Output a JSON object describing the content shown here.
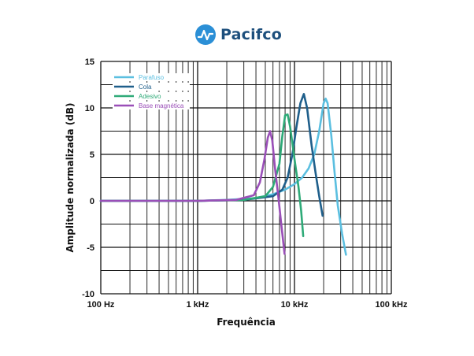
{
  "brand": {
    "name": "Pacifco",
    "icon": "waveform-logo-icon",
    "color": "#1d4f7c",
    "icon_color": "#2b8fd6"
  },
  "chart_data": {
    "type": "line",
    "xlabel": "Frequência",
    "ylabel": "Amplitude normalizada (dB)",
    "xscale": "log",
    "xlim": [
      100,
      100000
    ],
    "ylim": [
      -10,
      15
    ],
    "x_ticks": [
      {
        "value": 100,
        "label": "100 Hz"
      },
      {
        "value": 1000,
        "label": "1 kHz"
      },
      {
        "value": 10000,
        "label": "10 kHz"
      },
      {
        "value": 100000,
        "label": "100 kHz"
      }
    ],
    "y_ticks": [
      15,
      10,
      5,
      0,
      -5,
      -10
    ],
    "grid": true,
    "legend_position": "top-left",
    "series": [
      {
        "name": "Parafuso",
        "color": "#5bbfe0",
        "points": [
          [
            100,
            0
          ],
          [
            300,
            0
          ],
          [
            1000,
            0
          ],
          [
            2000,
            0.1
          ],
          [
            4000,
            0.3
          ],
          [
            6000,
            0.7
          ],
          [
            8000,
            1.2
          ],
          [
            10000,
            1.8
          ],
          [
            12000,
            2.5
          ],
          [
            14000,
            3.5
          ],
          [
            16000,
            5
          ],
          [
            18000,
            7.5
          ],
          [
            20000,
            10.5
          ],
          [
            21000,
            11
          ],
          [
            22000,
            10.5
          ],
          [
            24000,
            7
          ],
          [
            26000,
            3
          ],
          [
            28000,
            -0.5
          ],
          [
            31000,
            -3.5
          ],
          [
            34000,
            -5.8
          ]
        ]
      },
      {
        "name": "Cola",
        "color": "#1f5f8b",
        "points": [
          [
            100,
            0
          ],
          [
            1000,
            0
          ],
          [
            3000,
            0.1
          ],
          [
            6000,
            0.5
          ],
          [
            7500,
            1.2
          ],
          [
            8500,
            2.5
          ],
          [
            9500,
            5
          ],
          [
            10500,
            8
          ],
          [
            11500,
            10.5
          ],
          [
            12500,
            11.5
          ],
          [
            13500,
            10
          ],
          [
            15000,
            6
          ],
          [
            16500,
            3
          ],
          [
            18000,
            0.5
          ],
          [
            19500,
            -1.6
          ]
        ]
      },
      {
        "name": "Adesivo",
        "color": "#2eaa78",
        "points": [
          [
            100,
            0
          ],
          [
            1000,
            0
          ],
          [
            3000,
            0.1
          ],
          [
            5000,
            0.5
          ],
          [
            6000,
            1.5
          ],
          [
            7000,
            4
          ],
          [
            7500,
            7
          ],
          [
            8000,
            9.2
          ],
          [
            8500,
            9.3
          ],
          [
            9000,
            8
          ],
          [
            10000,
            4.5
          ],
          [
            11000,
            1.5
          ],
          [
            11700,
            -1
          ],
          [
            12300,
            -3.8
          ]
        ]
      },
      {
        "name": "Base magnética",
        "color": "#9a4fb8",
        "points": [
          [
            100,
            0
          ],
          [
            1000,
            0
          ],
          [
            2500,
            0.1
          ],
          [
            3800,
            0.6
          ],
          [
            4400,
            2
          ],
          [
            4900,
            4.5
          ],
          [
            5300,
            6.8
          ],
          [
            5600,
            7.5
          ],
          [
            5900,
            6.5
          ],
          [
            6300,
            3.5
          ],
          [
            6800,
            0.5
          ],
          [
            7300,
            -2.5
          ],
          [
            7900,
            -5.7
          ]
        ]
      }
    ]
  }
}
